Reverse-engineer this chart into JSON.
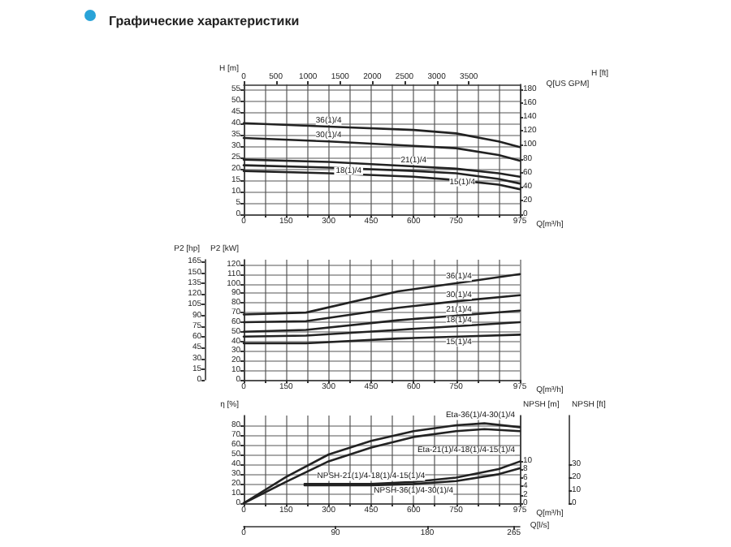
{
  "chart_data": [
    {
      "type": "line",
      "title": "Графические характеристики",
      "xlabel": "Q[m³/h]",
      "x2label": "Q[US GPM]",
      "ylabel": "H [m]",
      "y2label": "H [ft]",
      "xlim": [
        0,
        975
      ],
      "xticks": [
        0,
        {
          "value": 75,
          "label": null
        },
        150,
        {
          "value": 225,
          "label": null
        },
        300,
        {
          "value": 375,
          "label": null
        },
        450,
        {
          "value": 525,
          "label": null
        },
        600,
        {
          "value": 675,
          "label": null
        },
        750,
        {
          "value": 825,
          "label": null
        },
        {
          "value": 900,
          "label": null
        },
        975
      ],
      "x2lim": [
        0,
        4293
      ],
      "x2ticks": [
        0,
        500,
        1000,
        1500,
        2000,
        2500,
        3000,
        3500
      ],
      "ylim": [
        0,
        57
      ],
      "yticks": [
        0,
        5,
        10,
        15,
        20,
        25,
        30,
        35,
        40,
        45,
        50,
        55
      ],
      "y2lim": [
        0,
        187
      ],
      "y2ticks": [
        0,
        20,
        40,
        60,
        80,
        100,
        120,
        140,
        160,
        180
      ],
      "grid": true,
      "marker": "none",
      "line_style": "solid",
      "x": [
        0,
        300,
        600,
        750,
        900,
        975
      ],
      "series": [
        {
          "name": "36(1)/4",
          "color": "#222222",
          "values": [
            40,
            38.5,
            37,
            35.5,
            32,
            29.5
          ]
        },
        {
          "name": "30(1)/4",
          "color": "#222222",
          "values": [
            33.5,
            32,
            30,
            29,
            26,
            23.5
          ]
        },
        {
          "name": "21(1)/4",
          "color": "#222222",
          "values": [
            24,
            23,
            21,
            20,
            18,
            16.5
          ]
        },
        {
          "name": "18(1)/4",
          "color": "#222222",
          "values": [
            21.5,
            20.5,
            19,
            18,
            15.5,
            13.5
          ]
        },
        {
          "name": "15(1)/4",
          "color": "#222222",
          "values": [
            19,
            18,
            16.5,
            15,
            13,
            11
          ]
        }
      ]
    },
    {
      "type": "line",
      "xlabel": "Q[m³/h]",
      "ylabel": "P2 [kW]",
      "y2label": "P2 [hp]",
      "xlim": [
        0,
        975
      ],
      "xticks": [
        0,
        {
          "value": 75,
          "label": null
        },
        150,
        {
          "value": 225,
          "label": null
        },
        300,
        {
          "value": 375,
          "label": null
        },
        450,
        {
          "value": 525,
          "label": null
        },
        600,
        {
          "value": 675,
          "label": null
        },
        750,
        {
          "value": 825,
          "label": null
        },
        {
          "value": 900,
          "label": null
        },
        975
      ],
      "ylim": [
        0,
        125
      ],
      "yticks": [
        0,
        10,
        20,
        30,
        40,
        50,
        60,
        70,
        80,
        90,
        100,
        110,
        120
      ],
      "y2lim": [
        0,
        167.6
      ],
      "y2ticks": [
        0,
        15,
        30,
        45,
        60,
        75,
        90,
        105,
        120,
        135,
        150,
        165
      ],
      "grid": true,
      "marker": "none",
      "line_style": "solid",
      "x": [
        0,
        220,
        545,
        760,
        975
      ],
      "series": [
        {
          "name": "36(1)/4",
          "color": "#222222",
          "values": [
            68,
            70,
            92,
            101,
            110
          ]
        },
        {
          "name": "30(1)/4",
          "color": "#222222",
          "values": [
            60,
            61,
            75,
            82,
            88
          ]
        },
        {
          "name": "21(1)/4",
          "color": "#222222",
          "values": [
            50,
            52,
            62,
            67,
            72
          ]
        },
        {
          "name": "18(1)/4",
          "color": "#222222",
          "values": [
            45,
            46,
            52,
            56,
            60
          ]
        },
        {
          "name": "15(1)/4",
          "color": "#222222",
          "values": [
            38,
            38,
            43,
            45,
            47
          ]
        }
      ]
    },
    {
      "type": "line",
      "xlabel": "Q[m³/h]",
      "x2label": "Q[l/s]",
      "ylabel": "η [%]",
      "y2label": "NPSH [m]",
      "y3label": "NPSH [ft]",
      "xlim": [
        0,
        975
      ],
      "xticks": [
        0,
        {
          "value": 75,
          "label": null
        },
        150,
        {
          "value": 225,
          "label": null
        },
        300,
        {
          "value": 375,
          "label": null
        },
        450,
        {
          "value": 525,
          "label": null
        },
        600,
        {
          "value": 675,
          "label": null
        },
        750,
        {
          "value": 825,
          "label": null
        },
        {
          "value": 900,
          "label": null
        },
        975
      ],
      "x2lim": [
        0,
        270.8
      ],
      "x2ticks": [
        0,
        90,
        180,
        265
      ],
      "ylim": [
        0,
        90
      ],
      "yticks": [
        0,
        10,
        20,
        30,
        40,
        50,
        60,
        70,
        80
      ],
      "y2lim": [
        0,
        20.6
      ],
      "y2ticks": [
        0,
        2,
        4,
        6,
        8,
        10
      ],
      "y3lim": [
        0,
        67.6
      ],
      "y3ticks": [
        0,
        10,
        20,
        30
      ],
      "grid": true,
      "marker": "none",
      "line_style": "solid",
      "series": [
        {
          "name": "Eta-36(1)/4-30(1)/4",
          "color": "#222222",
          "x": [
            0,
            150,
            300,
            450,
            600,
            750,
            850,
            975
          ],
          "values": [
            0,
            27,
            50,
            64,
            74,
            80,
            82,
            78
          ]
        },
        {
          "name": "Eta-21(1)/4-18(1)/4-15(1)/4",
          "color": "#222222",
          "x": [
            0,
            150,
            300,
            450,
            600,
            750,
            850,
            975
          ],
          "values": [
            0,
            22,
            43,
            57,
            68,
            74,
            76,
            74
          ]
        },
        {
          "name": "NPSH-21(1)/4-18(1)/4-15(1)/4",
          "color": "#222222",
          "axis": "y2",
          "x": [
            215,
            450,
            600,
            750,
            900,
            975
          ],
          "values": [
            4.5,
            4.5,
            5,
            6,
            8,
            9.8
          ]
        },
        {
          "name": "NPSH-36(1)/4-30(1)/4",
          "color": "#222222",
          "axis": "y2",
          "x": [
            215,
            450,
            600,
            750,
            900,
            975
          ],
          "values": [
            4.2,
            4.2,
            4.5,
            5.2,
            6.8,
            8.2
          ]
        }
      ]
    }
  ]
}
